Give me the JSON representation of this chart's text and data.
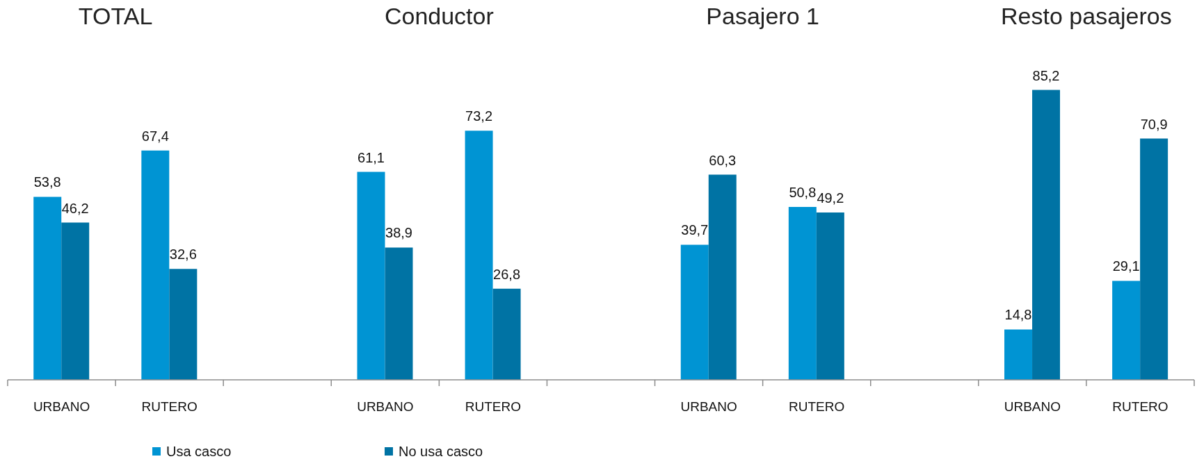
{
  "chart_data": {
    "type": "bar",
    "categories": [
      "URBANO",
      "RUTERO",
      null,
      "URBANO",
      "RUTERO",
      null,
      "URBANO",
      "RUTERO",
      null,
      "URBANO",
      "RUTERO"
    ],
    "series": [
      {
        "name": "Usa casco",
        "color": "#0094d3",
        "values": [
          53.8,
          67.4,
          null,
          61.1,
          73.2,
          null,
          39.7,
          50.8,
          null,
          14.8,
          29.1
        ],
        "value_labels": [
          "53,8",
          "67,4",
          null,
          "61,1",
          "73,2",
          null,
          "39,7",
          "50,8",
          null,
          "14,8",
          "29,1"
        ]
      },
      {
        "name": "No usa casco",
        "color": "#0073a4",
        "values": [
          46.2,
          32.6,
          null,
          38.9,
          26.8,
          null,
          60.3,
          49.2,
          null,
          85.2,
          70.9
        ],
        "value_labels": [
          "46,2",
          "32,6",
          null,
          "38,9",
          "26,8",
          null,
          "60,3",
          "49,2",
          null,
          "85,2",
          "70,9"
        ]
      }
    ],
    "annotations": [
      "TOTAL",
      "Conductor",
      "Pasajero 1",
      "Resto pasajeros"
    ],
    "legend": "bottom left"
  }
}
